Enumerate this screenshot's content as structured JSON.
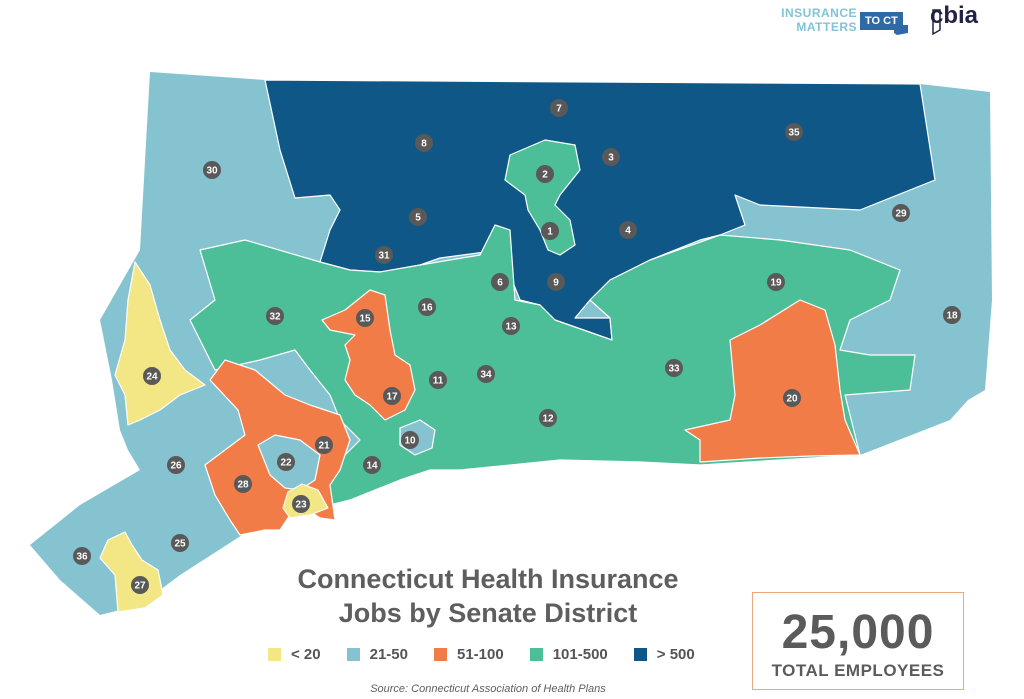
{
  "title_line1": "Connecticut Health Insurance",
  "title_line2": "Jobs by Senate District",
  "legend": [
    {
      "label": "< 20",
      "color": "#f3e684"
    },
    {
      "label": "21-50",
      "color": "#86c3d1"
    },
    {
      "label": "51-100",
      "color": "#f27c47"
    },
    {
      "label": "101-500",
      "color": "#4dbf98"
    },
    {
      "label": "> 500",
      "color": "#0f5787"
    }
  ],
  "source": "Source: Connecticut Association of Health Plans",
  "total": {
    "number": "25,000",
    "label": "TOTAL EMPLOYEES"
  },
  "logos": {
    "insurance_matters": [
      "INSURANCE",
      "MATTERS"
    ],
    "to_ct": "TO CT",
    "cbia": "cbia"
  },
  "districts": [
    {
      "id": "1",
      "category": "101-500"
    },
    {
      "id": "2",
      "category": "101-500"
    },
    {
      "id": "3",
      "category": "> 500"
    },
    {
      "id": "4",
      "category": "> 500"
    },
    {
      "id": "5",
      "category": "> 500"
    },
    {
      "id": "6",
      "category": "101-500"
    },
    {
      "id": "7",
      "category": "> 500"
    },
    {
      "id": "8",
      "category": "> 500"
    },
    {
      "id": "9",
      "category": "> 500"
    },
    {
      "id": "10",
      "category": "21-50"
    },
    {
      "id": "11",
      "category": "101-500"
    },
    {
      "id": "12",
      "category": "101-500"
    },
    {
      "id": "13",
      "category": "101-500"
    },
    {
      "id": "14",
      "category": "101-500"
    },
    {
      "id": "15",
      "category": "51-100"
    },
    {
      "id": "16",
      "category": "101-500"
    },
    {
      "id": "17",
      "category": "51-100"
    },
    {
      "id": "18",
      "category": "21-50"
    },
    {
      "id": "19",
      "category": "101-500"
    },
    {
      "id": "20",
      "category": "51-100"
    },
    {
      "id": "21",
      "category": "51-100"
    },
    {
      "id": "22",
      "category": "21-50"
    },
    {
      "id": "23",
      "category": "< 20"
    },
    {
      "id": "24",
      "category": "< 20"
    },
    {
      "id": "25",
      "category": "21-50"
    },
    {
      "id": "26",
      "category": "21-50"
    },
    {
      "id": "27",
      "category": "< 20"
    },
    {
      "id": "28",
      "category": "51-100"
    },
    {
      "id": "29",
      "category": "21-50"
    },
    {
      "id": "30",
      "category": "21-50"
    },
    {
      "id": "31",
      "category": "> 500"
    },
    {
      "id": "32",
      "category": "101-500"
    },
    {
      "id": "33",
      "category": "101-500"
    },
    {
      "id": "34",
      "category": "101-500"
    },
    {
      "id": "35",
      "category": "> 500"
    },
    {
      "id": "36",
      "category": "21-50"
    }
  ]
}
